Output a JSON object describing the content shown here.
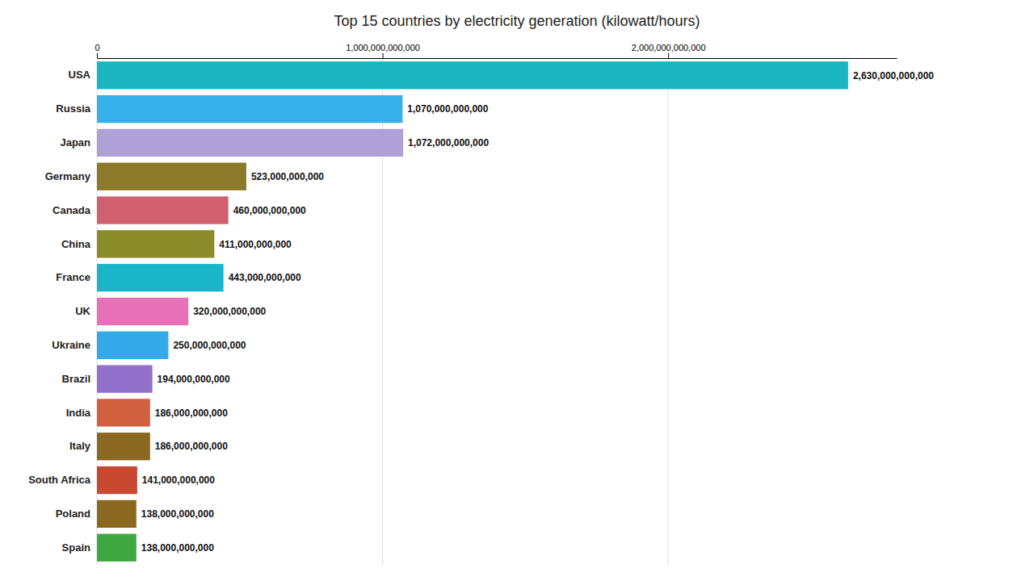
{
  "chart_data": {
    "type": "bar",
    "orientation": "horizontal",
    "title": "Top 15 countries by electricity generation (kilowatt/hours)",
    "categories": [
      "USA",
      "Russia",
      "Japan",
      "Germany",
      "Canada",
      "China",
      "France",
      "UK",
      "Ukraine",
      "Brazil",
      "India",
      "Italy",
      "South Africa",
      "Poland",
      "Spain"
    ],
    "values": [
      2630000000000,
      1070000000000,
      1072000000000,
      523000000000,
      460000000000,
      411000000000,
      443000000000,
      320000000000,
      250000000000,
      194000000000,
      186000000000,
      186000000000,
      141000000000,
      138000000000,
      138000000000
    ],
    "value_labels": [
      "2,630,000,000,000",
      "1,070,000,000,000",
      "1,072,000,000,000",
      "523,000,000,000",
      "460,000,000,000",
      "411,000,000,000",
      "443,000,000,000",
      "320,000,000,000",
      "250,000,000,000",
      "194,000,000,000",
      "186,000,000,000",
      "186,000,000,000",
      "141,000,000,000",
      "138,000,000,000",
      "138,000,000,000"
    ],
    "data_labels": true,
    "colors": [
      "#1ab5c0",
      "#35b0e8",
      "#b0a0d8",
      "#8b7a2a",
      "#d06070",
      "#8b8b2a",
      "#1ab5c8",
      "#e870b8",
      "#35a8e8",
      "#9070c8",
      "#d06040",
      "#8b6820",
      "#c84830",
      "#8b6820",
      "#40a840"
    ],
    "xlim": [
      0,
      2800000000000
    ],
    "xticks": [
      0,
      {
        "value": 1000000000000,
        "label": "1,000,000,000,000"
      },
      {
        "value": 2000000000000,
        "label": "2,000,000,000,000"
      }
    ],
    "grid": true
  }
}
